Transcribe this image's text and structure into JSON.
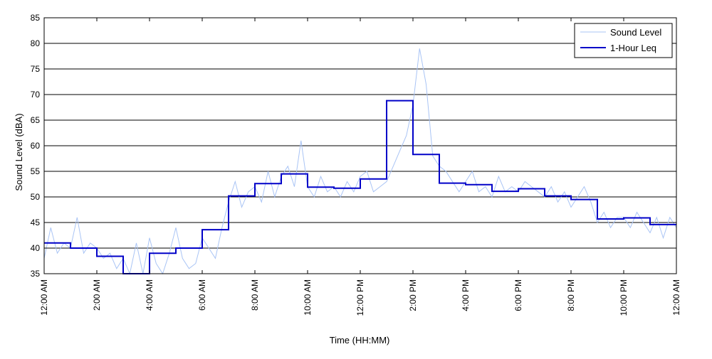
{
  "chart_data": {
    "type": "line",
    "title": "",
    "xlabel": "Time (HH:MM)",
    "ylabel": "Sound Level (dBA)",
    "ylim": [
      35,
      85
    ],
    "yticks": [
      35,
      40,
      45,
      50,
      55,
      60,
      65,
      70,
      75,
      80,
      85
    ],
    "xlim_hours": [
      0,
      24
    ],
    "xticks": [
      {
        "hour": 0,
        "label": "12:00 AM"
      },
      {
        "hour": 2,
        "label": "2:00 AM"
      },
      {
        "hour": 4,
        "label": "4:00 AM"
      },
      {
        "hour": 6,
        "label": "6:00 AM"
      },
      {
        "hour": 8,
        "label": "8:00 AM"
      },
      {
        "hour": 10,
        "label": "10:00 AM"
      },
      {
        "hour": 12,
        "label": "12:00 PM"
      },
      {
        "hour": 14,
        "label": "2:00 PM"
      },
      {
        "hour": 16,
        "label": "4:00 PM"
      },
      {
        "hour": 18,
        "label": "6:00 PM"
      },
      {
        "hour": 20,
        "label": "8:00 PM"
      },
      {
        "hour": 22,
        "label": "10:00 PM"
      },
      {
        "hour": 24,
        "label": "12:00 AM"
      }
    ],
    "grid": "horizontal",
    "legend_position": "top-right",
    "series": [
      {
        "name": "Sound Level",
        "color": "#a9c4f5",
        "style": "thin-line",
        "x_hours": [
          0,
          0.25,
          0.5,
          0.75,
          1,
          1.25,
          1.5,
          1.75,
          2,
          2.25,
          2.5,
          2.75,
          3,
          3.25,
          3.5,
          3.75,
          4,
          4.25,
          4.5,
          4.75,
          5,
          5.25,
          5.5,
          5.75,
          6,
          6.25,
          6.5,
          6.75,
          7,
          7.25,
          7.5,
          7.75,
          8,
          8.25,
          8.5,
          8.75,
          9,
          9.25,
          9.5,
          9.75,
          10,
          10.25,
          10.5,
          10.75,
          11,
          11.25,
          11.5,
          11.75,
          12,
          12.25,
          12.5,
          12.75,
          13,
          13.25,
          13.5,
          13.75,
          14,
          14.25,
          14.5,
          14.75,
          15,
          15.25,
          15.5,
          15.75,
          16,
          16.25,
          16.5,
          16.75,
          17,
          17.25,
          17.5,
          17.75,
          18,
          18.25,
          18.5,
          18.75,
          19,
          19.25,
          19.5,
          19.75,
          20,
          20.25,
          20.5,
          20.75,
          21,
          21.25,
          21.5,
          21.75,
          22,
          22.25,
          22.5,
          22.75,
          23,
          23.25,
          23.5,
          23.75,
          24
        ],
        "values": [
          38,
          44,
          39,
          41,
          40,
          46,
          39,
          41,
          40,
          38,
          39,
          36,
          38,
          35,
          41,
          35,
          42,
          37,
          35,
          39,
          44,
          38,
          36,
          37,
          42,
          40,
          38,
          44,
          49,
          53,
          48,
          51,
          52,
          49,
          55,
          50,
          54,
          56,
          52,
          61,
          52,
          50,
          54,
          51,
          52,
          50,
          53,
          51,
          54,
          55,
          51,
          52,
          53,
          56,
          59,
          62,
          68,
          79,
          72,
          58,
          56,
          55,
          53,
          51,
          53,
          55,
          51,
          52,
          50,
          54,
          51,
          52,
          51,
          53,
          52,
          51,
          50,
          52,
          49,
          51,
          48,
          50,
          52,
          49,
          45,
          47,
          44,
          46,
          46,
          44,
          47,
          45,
          43,
          46,
          42,
          46,
          44
        ]
      },
      {
        "name": "1-Hour Leq",
        "color": "#0000c8",
        "style": "step",
        "x_hours": [
          0,
          1,
          2,
          3,
          4,
          5,
          6,
          7,
          8,
          9,
          10,
          11,
          12,
          13,
          14,
          15,
          16,
          17,
          18,
          19,
          20,
          21,
          22,
          23
        ],
        "values": [
          41.0,
          40.0,
          38.4,
          35.0,
          39.0,
          40.0,
          43.6,
          50.2,
          52.6,
          54.5,
          51.9,
          51.7,
          53.5,
          68.8,
          58.3,
          52.7,
          52.4,
          51.1,
          51.6,
          50.2,
          49.5,
          45.7,
          45.9,
          44.6
        ]
      }
    ]
  }
}
